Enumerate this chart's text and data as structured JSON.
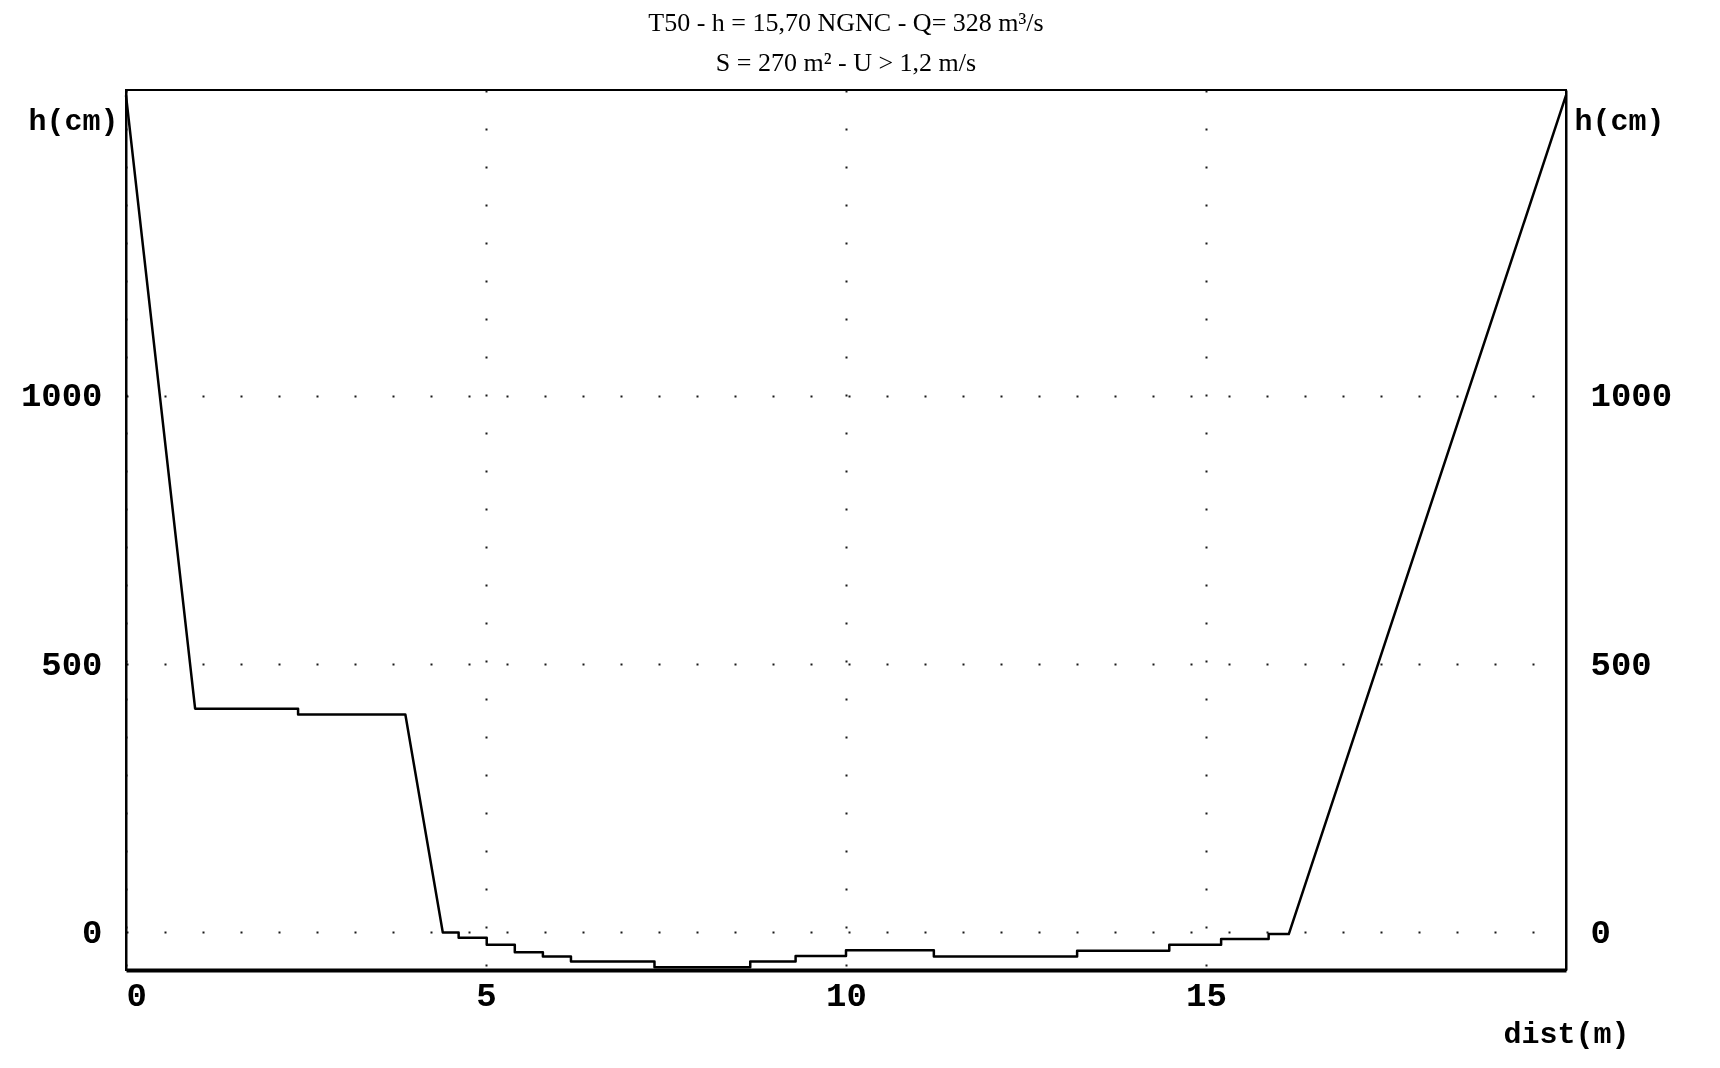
{
  "chart_data": {
    "type": "line",
    "title": "T50 - h = 15,70 NGNC - Q= 328 m³/s",
    "subtitle": "S = 270 m² - U > 1,2 m/s",
    "xlabel": "dist(m)",
    "ylabel": "h(cm)",
    "y2label": "h(cm)",
    "xlim": [
      0,
      20
    ],
    "xticks": [
      0,
      5,
      10,
      15
    ],
    "ylim": [
      -70,
      1570
    ],
    "yticks": [
      0,
      500,
      1000
    ],
    "y2lim": [
      -70,
      1570
    ],
    "y2ticks": [
      0,
      500,
      1000
    ],
    "grid": true,
    "line_style": "solid",
    "series": [
      {
        "color": "#000000",
        "x": [
          0,
          0.96,
          2.39,
          2.39,
          3.88,
          4.4,
          4.62,
          4.62,
          5.01,
          5.01,
          5.4,
          5.4,
          5.79,
          5.79,
          6.18,
          6.18,
          7.34,
          7.34,
          8.67,
          8.67,
          9.3,
          9.3,
          10.0,
          10.0,
          11.22,
          11.22,
          13.21,
          13.21,
          14.49,
          14.49,
          15.21,
          15.21,
          15.87,
          15.87,
          16.15,
          20
        ],
        "values": [
          1560,
          417,
          417,
          406,
          406,
          0,
          0,
          -10,
          -10,
          -23,
          -23,
          -37,
          -37,
          -45,
          -45,
          -54,
          -54,
          -65,
          -65,
          -54,
          -54,
          -44,
          -44,
          -33,
          -33,
          -45,
          -45,
          -34,
          -34,
          -23,
          -23,
          -12,
          -12,
          -3,
          -3,
          1560
        ]
      }
    ]
  }
}
